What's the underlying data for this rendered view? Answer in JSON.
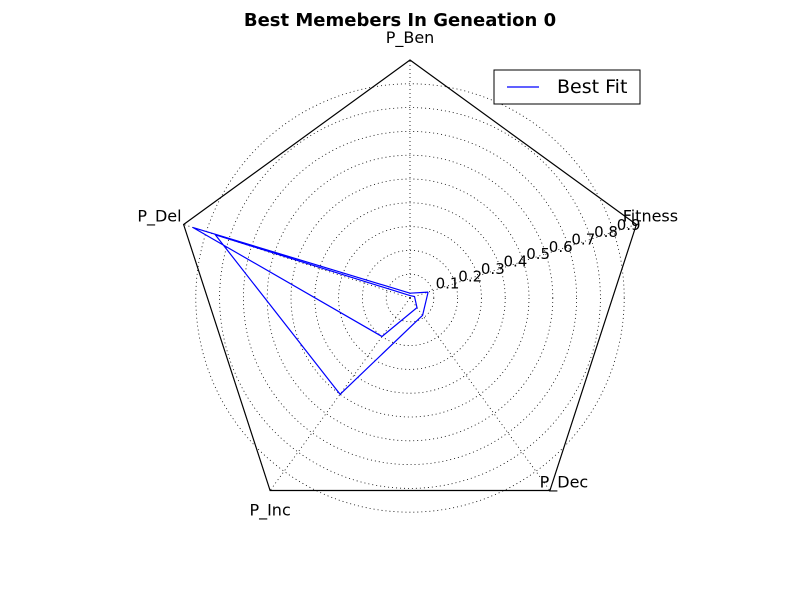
{
  "chart_data": {
    "type": "radar",
    "title": "Best Memebers In Geneation 0",
    "axes": [
      "Fitness",
      "P_Ben",
      "P_Del",
      "P_Inc",
      "P_Dec"
    ],
    "rticks": [
      "0.1",
      "0.2",
      "0.3",
      "0.4",
      "0.5",
      "0.6",
      "0.7",
      "0.8",
      "0.9"
    ],
    "rlim": [
      0,
      1
    ],
    "grid": true,
    "legend_position": "top-right",
    "series": [
      {
        "name": "Best Fit",
        "color": "#0000ff",
        "points": [
          {
            "axis": "Fitness",
            "r": 0.08
          },
          {
            "axis": "P_Ben",
            "r": 0.02
          },
          {
            "axis": "P_Del",
            "r": 0.96
          },
          {
            "axis": "P_Inc",
            "r": 0.2
          },
          {
            "axis": "P_Dec",
            "r": 0.05
          },
          {
            "axis": "Fitness",
            "r": 0.02
          },
          {
            "axis": "P_Ben",
            "r": 0.01
          },
          {
            "axis": "P_Del",
            "r": 0.86
          },
          {
            "axis": "P_Inc",
            "r": 0.5
          },
          {
            "axis": "P_Dec",
            "r": 0.09
          },
          {
            "axis": "Fitness",
            "r": 0.08
          }
        ]
      }
    ]
  }
}
